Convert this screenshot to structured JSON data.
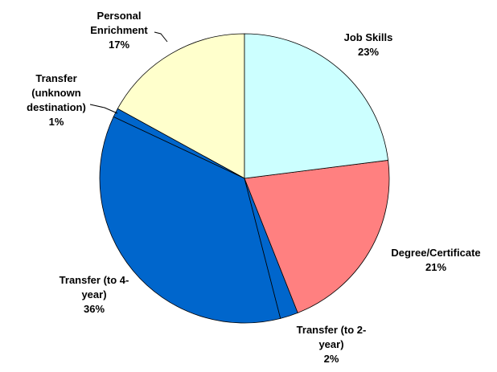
{
  "chart_data": {
    "type": "pie",
    "categories": [
      "Job Skills",
      "Degree/Certificate",
      "Transfer (to 2-year)",
      "Transfer (to 4-year)",
      "Transfer (unknown destination)",
      "Personal Enrichment"
    ],
    "values": [
      23,
      21,
      2,
      36,
      1,
      17
    ],
    "value_labels": [
      "23%",
      "21%",
      "2%",
      "36%",
      "1%",
      "17%"
    ],
    "colors": [
      "#ccffff",
      "#ff8080",
      "#0066cc",
      "#0066cc",
      "#0066cc",
      "#ffffcc"
    ]
  }
}
